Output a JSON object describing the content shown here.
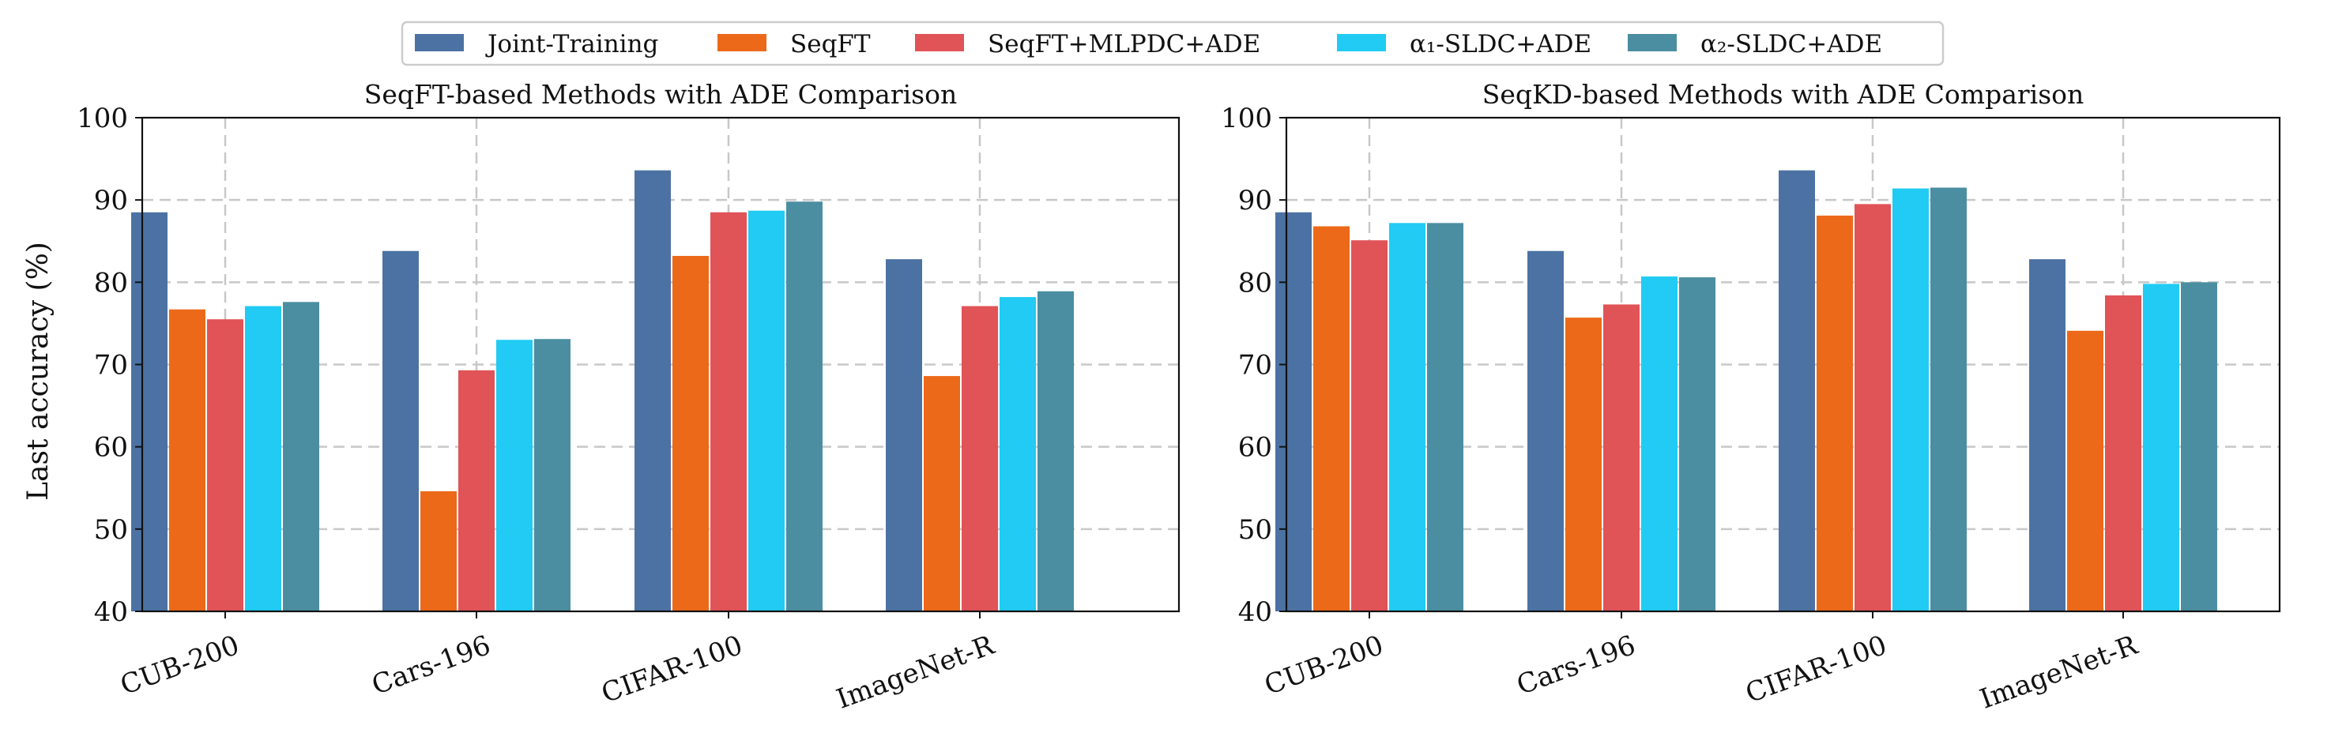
{
  "legend": [
    {
      "label": "Joint-Training",
      "color": "#4c72a4",
      "sub": ""
    },
    {
      "label": "SeqFT",
      "color": "#ec6919",
      "sub": ""
    },
    {
      "label": "SeqFT+MLPDC+ADE",
      "color": "#e05357",
      "sub": ""
    },
    {
      "label": "α₁-SLDC+ADE",
      "color": "#21cbf3",
      "sub": ""
    },
    {
      "label": "α₂-SLDC+ADE",
      "color": "#4b8ea1",
      "sub": ""
    }
  ],
  "ylabel": "Last accuracy (%)",
  "chart_data": [
    {
      "type": "bar",
      "title": "SeqFT-based Methods with ADE Comparison",
      "categories": [
        "CUB-200",
        "Cars-196",
        "CIFAR-100",
        "ImageNet-R"
      ],
      "ylim": [
        40,
        100
      ],
      "yticks": [
        40,
        50,
        60,
        70,
        80,
        90,
        100
      ],
      "grid": true,
      "series": [
        {
          "name": "Joint-Training",
          "values": [
            88.5,
            83.8,
            93.6,
            82.8
          ]
        },
        {
          "name": "SeqFT",
          "values": [
            76.7,
            54.6,
            83.2,
            68.6
          ]
        },
        {
          "name": "SeqFT+MLPDC+ADE",
          "values": [
            75.5,
            69.3,
            88.5,
            77.1
          ]
        },
        {
          "name": "α1-SLDC+ADE",
          "values": [
            77.1,
            73.0,
            88.7,
            78.2
          ]
        },
        {
          "name": "α2-SLDC+ADE",
          "values": [
            77.6,
            73.1,
            89.8,
            78.9
          ]
        }
      ]
    },
    {
      "type": "bar",
      "title": "SeqKD-based Methods with ADE Comparison",
      "categories": [
        "CUB-200",
        "Cars-196",
        "CIFAR-100",
        "ImageNet-R"
      ],
      "ylim": [
        40,
        100
      ],
      "yticks": [
        40,
        50,
        60,
        70,
        80,
        90,
        100
      ],
      "grid": true,
      "series": [
        {
          "name": "Joint-Training",
          "values": [
            88.5,
            83.8,
            93.6,
            82.8
          ]
        },
        {
          "name": "SeqFT",
          "values": [
            86.8,
            75.7,
            88.1,
            74.1
          ]
        },
        {
          "name": "SeqFT+MLPDC+ADE",
          "values": [
            85.1,
            77.3,
            89.5,
            78.4
          ]
        },
        {
          "name": "α1-SLDC+ADE",
          "values": [
            87.2,
            80.7,
            91.4,
            79.8
          ]
        },
        {
          "name": "α2-SLDC+ADE",
          "values": [
            87.2,
            80.6,
            91.5,
            80.0
          ]
        }
      ]
    }
  ]
}
